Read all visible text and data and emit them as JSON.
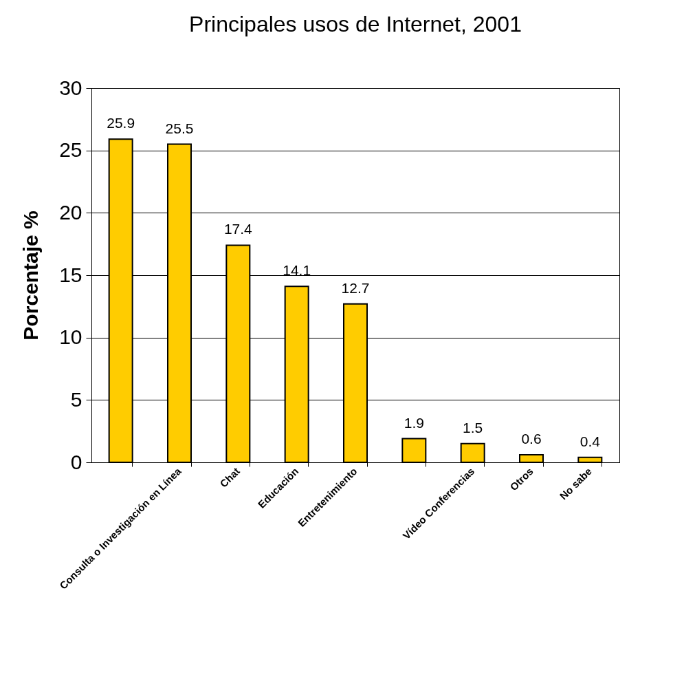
{
  "chart_data": {
    "type": "bar",
    "title": "Principales usos de Internet, 2001",
    "ylabel": "Porcentaje %",
    "categories": [
      null,
      "Consulta o Investigación en Línea",
      "Chat",
      "Educación",
      "Entretenimiento",
      null,
      "Vídeo Conferencias",
      "Otros",
      "No sabe"
    ],
    "values": [
      25.9,
      25.5,
      17.4,
      14.1,
      12.7,
      1.9,
      1.5,
      0.6,
      0.4
    ],
    "color": "#ffcc00",
    "ylim": [
      0,
      30
    ],
    "yticks": [
      0,
      5,
      10,
      15,
      20,
      25,
      30
    ],
    "grid": "y",
    "data_labels": true
  }
}
